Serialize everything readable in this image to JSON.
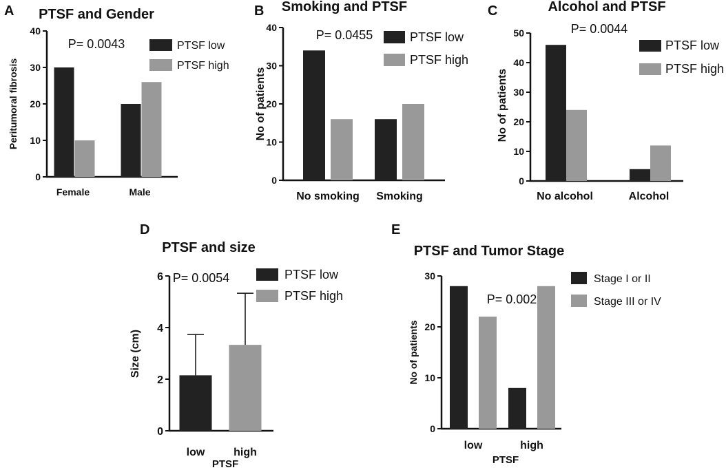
{
  "colors": {
    "low": "#222222",
    "high": "#999999",
    "axis": "#111111"
  },
  "chart_data": [
    {
      "id": "A",
      "panel_label": "A",
      "type": "bar",
      "title": "PTSF and Gender",
      "ylabel": "Peritumoral fibrosis",
      "xlabel": "",
      "categories": [
        "Female",
        "Male"
      ],
      "series": [
        {
          "name": "PTSF low",
          "values": [
            30,
            20
          ]
        },
        {
          "name": "PTSF high",
          "values": [
            10,
            26
          ]
        }
      ],
      "ylim": [
        0,
        40
      ],
      "yticks": [
        "0",
        "10",
        "20",
        "30",
        "40"
      ],
      "pvalue": "P= 0.0043",
      "legend": [
        "PTSF low",
        "PTSF high"
      ]
    },
    {
      "id": "B",
      "panel_label": "B",
      "type": "bar",
      "title": "Smoking and PTSF",
      "ylabel": "No of patients",
      "xlabel": "",
      "categories": [
        "No smoking",
        "Smoking"
      ],
      "series": [
        {
          "name": "PTSF low",
          "values": [
            34,
            16
          ]
        },
        {
          "name": "PTSF high",
          "values": [
            16,
            20
          ]
        }
      ],
      "ylim": [
        0,
        40
      ],
      "yticks": [
        "0",
        "10",
        "20",
        "30",
        "40"
      ],
      "pvalue": "P= 0.0455",
      "legend": [
        "PTSF low",
        "PTSF high"
      ]
    },
    {
      "id": "C",
      "panel_label": "C",
      "type": "bar",
      "title": "Alcohol and PTSF",
      "ylabel": "No of patients",
      "xlabel": "",
      "categories": [
        "No alcohol",
        "Alcohol"
      ],
      "series": [
        {
          "name": "PTSF low",
          "values": [
            46,
            4
          ]
        },
        {
          "name": "PTSF high",
          "values": [
            24,
            12
          ]
        }
      ],
      "ylim": [
        0,
        50
      ],
      "yticks": [
        "0",
        "10",
        "20",
        "30",
        "40",
        "50"
      ],
      "pvalue": "P= 0.0044",
      "legend": [
        "PTSF low",
        "PTSF high"
      ]
    },
    {
      "id": "D",
      "panel_label": "D",
      "type": "bar",
      "title": "PTSF and size",
      "ylabel": "Size (cm)",
      "xlabel": "PTSF",
      "categories": [
        "low",
        "high"
      ],
      "values": [
        2.15,
        3.33
      ],
      "errors": [
        1.58,
        2.0
      ],
      "ylim": [
        0,
        6
      ],
      "yticks": [
        "0",
        "2",
        "4",
        "6"
      ],
      "pvalue": "P= 0.0054",
      "legend": [
        "PTSF low",
        "PTSF high"
      ]
    },
    {
      "id": "E",
      "panel_label": "E",
      "type": "bar",
      "title": "PTSF and  Tumor Stage",
      "ylabel": "No of patients",
      "xlabel": "PTSF",
      "categories": [
        "low",
        "high"
      ],
      "series": [
        {
          "name": "Stage I or II",
          "values": [
            28,
            8
          ]
        },
        {
          "name": "Stage III or IV",
          "values": [
            22,
            28
          ]
        }
      ],
      "ylim": [
        0,
        30
      ],
      "yticks": [
        "0",
        "10",
        "20",
        "30"
      ],
      "pvalue": "P= 0.002",
      "legend": [
        "Stage I or II",
        "Stage III or IV"
      ]
    }
  ]
}
